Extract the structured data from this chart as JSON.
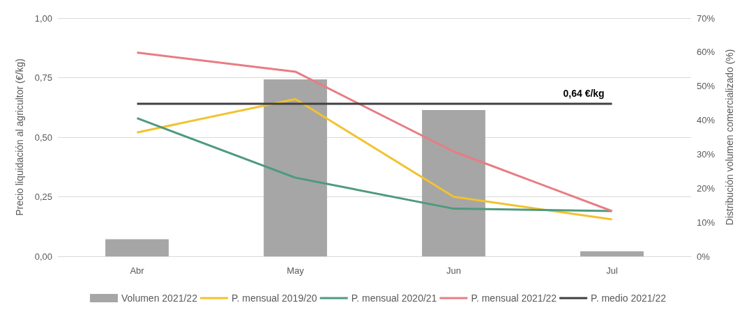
{
  "chart_data": {
    "type": "line",
    "categories": [
      "Abr",
      "May",
      "Jun",
      "Jul"
    ],
    "ylabel": "Precio liquidación al agricultor (€/kg)",
    "y2label": "Distribución volumen comercializado (%)",
    "ylim": [
      0,
      1
    ],
    "yticks": [
      {
        "value": 0,
        "label": "0,00"
      },
      {
        "value": 0.25,
        "label": "0,25"
      },
      {
        "value": 0.5,
        "label": "0,50"
      },
      {
        "value": 0.75,
        "label": "0,75"
      },
      {
        "value": 1,
        "label": "1,00"
      }
    ],
    "y2lim": [
      0,
      70
    ],
    "y2ticks": [
      {
        "value": 0,
        "label": "0%"
      },
      {
        "value": 10,
        "label": "10%"
      },
      {
        "value": 20,
        "label": "20%"
      },
      {
        "value": 30,
        "label": "30%"
      },
      {
        "value": 40,
        "label": "40%"
      },
      {
        "value": 50,
        "label": "50%"
      },
      {
        "value": 60,
        "label": "60%"
      },
      {
        "value": 70,
        "label": "70%"
      }
    ],
    "grid": "y",
    "legend": "bottom",
    "marker": "none",
    "series": [
      {
        "name": "Volumen 2021/22",
        "type": "bar",
        "axis": "y2",
        "color": "#a6a6a6",
        "values": [
          5,
          52,
          43,
          1.5
        ]
      },
      {
        "name": "P. mensual 2019/20",
        "color": "#f2c230",
        "values": [
          0.52,
          0.66,
          0.25,
          0.155
        ]
      },
      {
        "name": "P. mensual 2020/21",
        "color": "#4e9a7c",
        "values": [
          0.58,
          0.33,
          0.2,
          0.19
        ]
      },
      {
        "name": "P. mensual 2021/22",
        "color": "#e87c84",
        "values": [
          0.855,
          0.775,
          0.44,
          0.19
        ]
      },
      {
        "name": "P. medio 2021/22",
        "color": "#404040",
        "values": [
          0.64,
          0.64,
          0.64,
          0.64
        ],
        "value_labels": [
          null,
          null,
          null,
          "0,64 €/kg"
        ]
      }
    ]
  }
}
